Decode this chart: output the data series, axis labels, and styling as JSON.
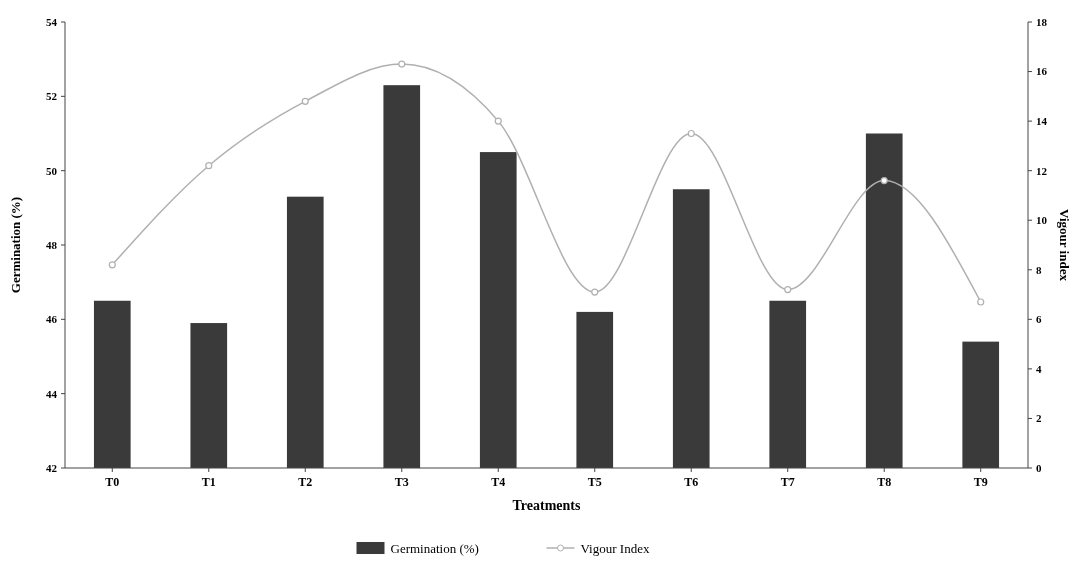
{
  "chart_data": {
    "type": "bar",
    "xlabel": "Treatments",
    "ylabel": "Germination (%)",
    "y2label": "Vigour index",
    "categories": [
      "T0",
      "T1",
      "T2",
      "T3",
      "T4",
      "T5",
      "T6",
      "T7",
      "T8",
      "T9"
    ],
    "series": [
      {
        "name": "Germination (%)",
        "color": "#3a3a3a",
        "values": [
          46.5,
          45.9,
          49.3,
          52.3,
          50.5,
          46.2,
          49.5,
          46.5,
          51.0,
          45.4
        ]
      },
      {
        "name": "Vigour Index",
        "type": "line",
        "axis": "y2",
        "color": "#b0b0b0",
        "values": [
          8.2,
          12.2,
          14.8,
          16.3,
          14.0,
          7.1,
          13.5,
          7.2,
          11.6,
          6.7
        ]
      }
    ],
    "ylim": [
      42,
      54
    ],
    "yticks": [
      42,
      44,
      46,
      48,
      50,
      52,
      54
    ],
    "y2lim": [
      0,
      18
    ],
    "y2ticks": [
      0,
      2,
      4,
      6,
      8,
      10,
      12,
      14,
      16,
      18
    ],
    "marker": "circle",
    "legend": "bottom",
    "grid": false
  }
}
